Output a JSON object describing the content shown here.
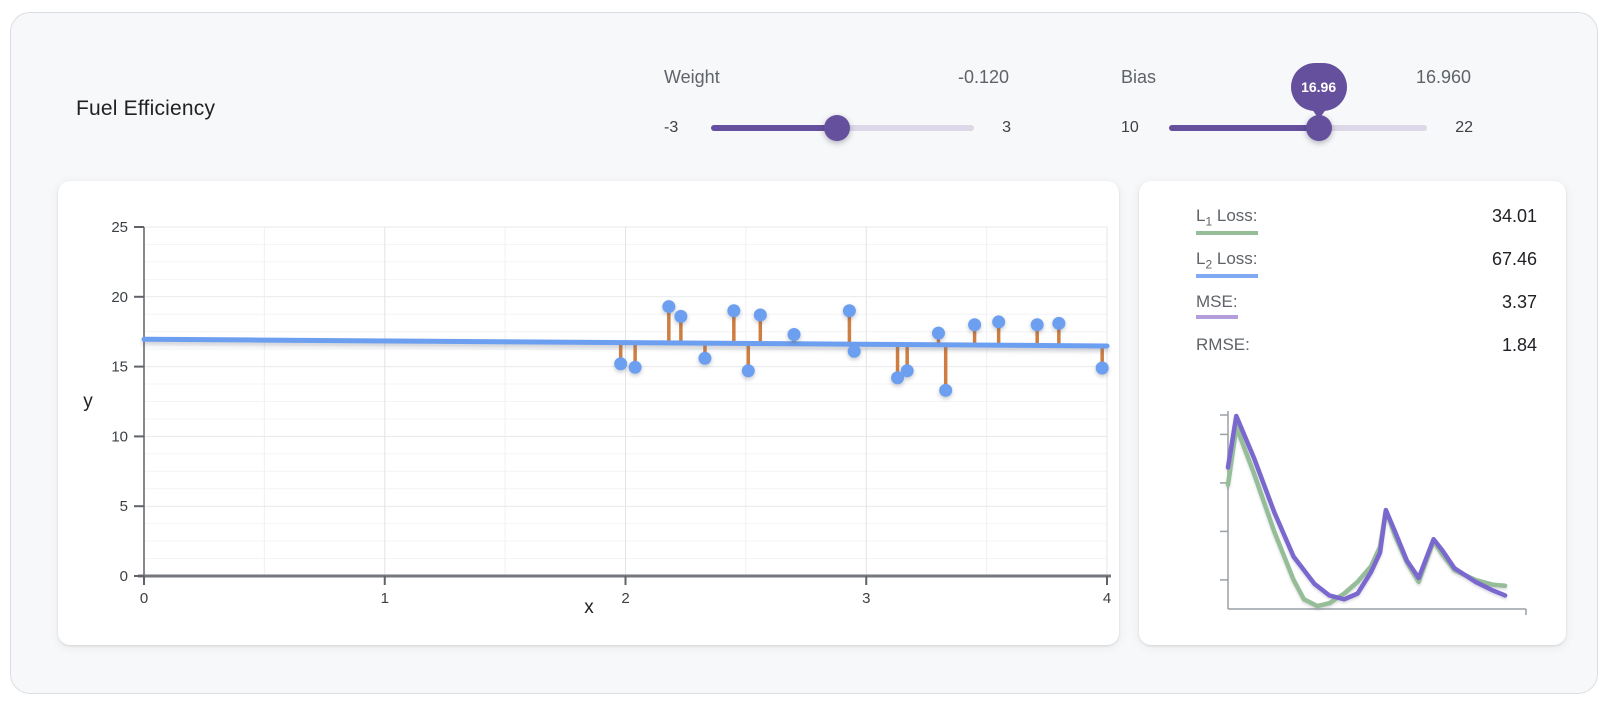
{
  "page": {
    "title": "Fuel Efficiency"
  },
  "controls": {
    "weight": {
      "label": "Weight",
      "value_display": "-0.120",
      "value": -0.12,
      "min": -3,
      "max": 3,
      "min_label": "-3",
      "max_label": "3"
    },
    "bias": {
      "label": "Bias",
      "value_display": "16.960",
      "value": 16.96,
      "min": 10,
      "max": 22,
      "min_label": "10",
      "max_label": "22",
      "tooltip": "16.96"
    }
  },
  "loss_panel": {
    "rows": [
      {
        "label_main": "L",
        "label_sub": "1",
        "label_rest": " Loss:",
        "value": "34.01",
        "underline_color": "#95bd98"
      },
      {
        "label_main": "L",
        "label_sub": "2",
        "label_rest": " Loss:",
        "value": "67.46",
        "underline_color": "#82aaf2"
      },
      {
        "label_main": "MSE:",
        "label_sub": "",
        "label_rest": "",
        "value": "3.37",
        "underline_color": "#b49ddb"
      },
      {
        "label_main": "RMSE:",
        "label_sub": "",
        "label_rest": "",
        "value": "1.84",
        "underline_color": ""
      }
    ]
  },
  "chart_data": [
    {
      "type": "scatter",
      "name": "fuel-efficiency-model-fit",
      "title": "Fuel Efficiency",
      "xlabel": "x",
      "ylabel": "y",
      "xlim": [
        0,
        4
      ],
      "ylim": [
        0,
        25
      ],
      "x_ticks": [
        0,
        1,
        2,
        3,
        4
      ],
      "y_ticks": [
        0,
        5,
        10,
        15,
        20,
        25
      ],
      "grid": "on",
      "model_line": {
        "weight": -0.12,
        "bias": 16.96,
        "x_start": 0,
        "x_end": 4
      },
      "points": [
        [
          1.98,
          15.2
        ],
        [
          2.04,
          14.95
        ],
        [
          2.18,
          19.3
        ],
        [
          2.23,
          18.6
        ],
        [
          2.33,
          15.6
        ],
        [
          2.45,
          19.0
        ],
        [
          2.51,
          14.7
        ],
        [
          2.56,
          18.7
        ],
        [
          2.7,
          17.3
        ],
        [
          2.93,
          19.0
        ],
        [
          2.95,
          16.1
        ],
        [
          3.13,
          14.2
        ],
        [
          3.17,
          14.7
        ],
        [
          3.3,
          17.4
        ],
        [
          3.33,
          13.3
        ],
        [
          3.45,
          18.0
        ],
        [
          3.55,
          18.2
        ],
        [
          3.71,
          18.0
        ],
        [
          3.8,
          18.1
        ],
        [
          3.98,
          14.9
        ]
      ]
    },
    {
      "type": "line",
      "name": "loss-history-curves",
      "legend_position": "none",
      "axis_units": "normalized-percent",
      "y_axis_ticks_norm": [
        0,
        10,
        35,
        60,
        85
      ],
      "series": [
        {
          "name": "L1 loss",
          "color": "#95bd98",
          "points_norm": [
            [
              0,
              36
            ],
            [
              2.8,
              6
            ],
            [
              8.7,
              30
            ],
            [
              15.5,
              60
            ],
            [
              22,
              85
            ],
            [
              25.5,
              95
            ],
            [
              30,
              98.5
            ],
            [
              34,
              97
            ],
            [
              39,
              92
            ],
            [
              43.5,
              86
            ],
            [
              48,
              78
            ],
            [
              51,
              68
            ],
            [
              53,
              49
            ],
            [
              56,
              62
            ],
            [
              60,
              76
            ],
            [
              64,
              86
            ],
            [
              69,
              65
            ],
            [
              72,
              72
            ],
            [
              76,
              80
            ],
            [
              83,
              85
            ],
            [
              89,
              87.5
            ],
            [
              93,
              88
            ]
          ]
        },
        {
          "name": "MSE",
          "color": "#7a68cf",
          "points_norm": [
            [
              0,
              27
            ],
            [
              2.8,
              0.5
            ],
            [
              8.7,
              22
            ],
            [
              15.5,
              50
            ],
            [
              22,
              73
            ],
            [
              29,
              87
            ],
            [
              34,
              93
            ],
            [
              39,
              95
            ],
            [
              43.5,
              92
            ],
            [
              48,
              81
            ],
            [
              51,
              71
            ],
            [
              53,
              49
            ],
            [
              56,
              60
            ],
            [
              60,
              75
            ],
            [
              64,
              84
            ],
            [
              69,
              64
            ],
            [
              72,
              70
            ],
            [
              76,
              79
            ],
            [
              83,
              86
            ],
            [
              89,
              90.5
            ],
            [
              93,
              93
            ]
          ]
        }
      ]
    }
  ],
  "colors": {
    "accent_purple": "#65509e",
    "track_inactive": "#ddd7e7",
    "point_blue": "#6d9ff0",
    "line_blue": "#6d9ff0",
    "residual_orange": "#ce7e41",
    "l1_green": "#95bd98",
    "l2_blue": "#82aaf2",
    "mse_purple": "#b49ddb",
    "curve_purple": "#7a68cf"
  }
}
